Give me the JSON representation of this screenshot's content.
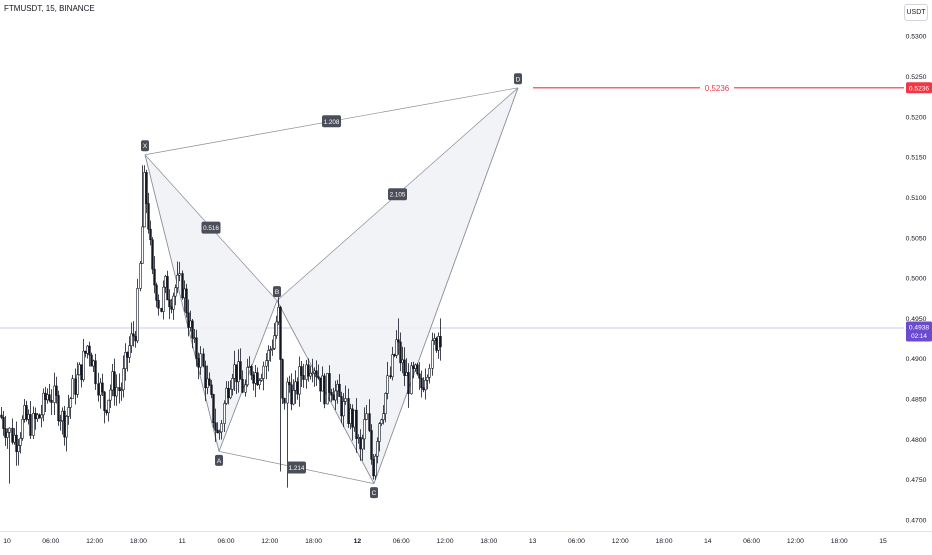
{
  "symbol_line": "FTMUSDT, 15, BINANCE",
  "currency_button": "USDT",
  "colors": {
    "up": "#ffffff",
    "down": "#131722",
    "pattern_line": "#8a8e99",
    "pattern_fill": "#f0f2f6",
    "target_line": "#f23645",
    "price_tag": "#6a4bd0",
    "current_line": "#c5cbe8"
  },
  "chart_data": {
    "type": "candlestick",
    "price_axis": {
      "ylim": [
        0.4685,
        0.5335
      ],
      "ticks": [
        "0.5300",
        "0.5250",
        "0.5200",
        "0.5150",
        "0.5100",
        "0.5050",
        "0.5000",
        "0.4950",
        "0.4900",
        "0.4850",
        "0.4800",
        "0.4750",
        "0.4700"
      ]
    },
    "time_axis": {
      "ticks": [
        {
          "label": "10",
          "bold": false
        },
        {
          "label": "06:00",
          "bold": false
        },
        {
          "label": "12:00",
          "bold": false
        },
        {
          "label": "18:00",
          "bold": false
        },
        {
          "label": "11",
          "bold": false
        },
        {
          "label": "06:00",
          "bold": false
        },
        {
          "label": "12:00",
          "bold": false
        },
        {
          "label": "18:00",
          "bold": false
        },
        {
          "label": "12",
          "bold": true
        },
        {
          "label": "06:00",
          "bold": false
        },
        {
          "label": "12:00",
          "bold": false
        },
        {
          "label": "18:00",
          "bold": false
        },
        {
          "label": "13",
          "bold": false
        },
        {
          "label": "06:00",
          "bold": false
        },
        {
          "label": "12:00",
          "bold": false
        },
        {
          "label": "18:00",
          "bold": false
        },
        {
          "label": "14",
          "bold": false
        },
        {
          "label": "06:00",
          "bold": false
        },
        {
          "label": "12:00",
          "bold": false
        },
        {
          "label": "18:00",
          "bold": false
        },
        {
          "label": "15",
          "bold": false
        }
      ]
    },
    "price_path": [
      [
        0,
        0.483
      ],
      [
        8,
        0.481
      ],
      [
        16,
        0.48
      ],
      [
        24,
        0.4825
      ],
      [
        32,
        0.4818
      ],
      [
        40,
        0.483
      ],
      [
        48,
        0.486
      ],
      [
        56,
        0.4845
      ],
      [
        64,
        0.482
      ],
      [
        72,
        0.486
      ],
      [
        80,
        0.4885
      ],
      [
        88,
        0.492
      ],
      [
        96,
        0.488
      ],
      [
        104,
        0.484
      ],
      [
        112,
        0.487
      ],
      [
        120,
        0.486
      ],
      [
        128,
        0.491
      ],
      [
        136,
        0.494
      ],
      [
        140,
        0.502
      ],
      [
        144,
        0.512
      ],
      [
        148,
        0.507
      ],
      [
        152,
        0.5
      ],
      [
        156,
        0.499
      ],
      [
        160,
        0.496
      ],
      [
        164,
        0.499
      ],
      [
        170,
        0.4975
      ],
      [
        176,
        0.499
      ],
      [
        182,
        0.499
      ],
      [
        188,
        0.495
      ],
      [
        194,
        0.491
      ],
      [
        200,
        0.49
      ],
      [
        208,
        0.486
      ],
      [
        218,
        0.48
      ],
      [
        226,
        0.486
      ],
      [
        232,
        0.489
      ],
      [
        238,
        0.488
      ],
      [
        244,
        0.486
      ],
      [
        250,
        0.489
      ],
      [
        256,
        0.488
      ],
      [
        262,
        0.489
      ],
      [
        268,
        0.4905
      ],
      [
        274,
        0.493
      ],
      [
        278,
        0.496
      ],
      [
        282,
        0.484
      ],
      [
        288,
        0.487
      ],
      [
        294,
        0.485
      ],
      [
        300,
        0.488
      ],
      [
        306,
        0.489
      ],
      [
        312,
        0.49
      ],
      [
        318,
        0.488
      ],
      [
        324,
        0.486
      ],
      [
        330,
        0.487
      ],
      [
        336,
        0.4855
      ],
      [
        342,
        0.484
      ],
      [
        348,
        0.483
      ],
      [
        354,
        0.482
      ],
      [
        360,
        0.478
      ],
      [
        366,
        0.483
      ],
      [
        372,
        0.476
      ],
      [
        378,
        0.482
      ],
      [
        384,
        0.485
      ],
      [
        390,
        0.488
      ],
      [
        396,
        0.492
      ],
      [
        402,
        0.489
      ],
      [
        408,
        0.487
      ],
      [
        414,
        0.488
      ],
      [
        420,
        0.486
      ],
      [
        426,
        0.489
      ],
      [
        432,
        0.491
      ],
      [
        438,
        0.4932
      ]
    ],
    "volatility_spikes": [
      {
        "x": 9,
        "low": 0.4745
      },
      {
        "x": 143,
        "high": 0.514
      },
      {
        "x": 280,
        "low": 0.476
      },
      {
        "x": 286,
        "low": 0.474
      },
      {
        "x": 374,
        "low": 0.475
      },
      {
        "x": 398,
        "high": 0.495
      },
      {
        "x": 440,
        "high": 0.495
      }
    ],
    "harmonic_pattern": {
      "points": [
        {
          "label": "X",
          "price": 0.5153,
          "bar_x": 145,
          "label_pos": "above"
        },
        {
          "label": "A",
          "price": 0.4785,
          "bar_x": 219,
          "label_pos": "below"
        },
        {
          "label": "B",
          "price": 0.4972,
          "bar_x": 277,
          "label_pos": "above"
        },
        {
          "label": "C",
          "price": 0.4745,
          "bar_x": 374,
          "label_pos": "below"
        },
        {
          "label": "D",
          "price": 0.5236,
          "bar_x": 518,
          "label_pos": "above"
        }
      ],
      "ratios": [
        {
          "label": "1.208",
          "between": [
            "X",
            "D"
          ]
        },
        {
          "label": "0.516",
          "between": [
            "X",
            "B"
          ]
        },
        {
          "label": "2.105",
          "between": [
            "B",
            "D"
          ]
        },
        {
          "label": "1.214",
          "between": [
            "A",
            "C"
          ]
        }
      ]
    },
    "target_line": {
      "price": 0.5236,
      "label": "0.5236"
    },
    "tags": [
      {
        "price": 0.5236,
        "text": "0.5236",
        "kind": "target"
      },
      {
        "price": 0.4938,
        "text": "0.4938",
        "kind": "current"
      }
    ],
    "current_price": {
      "price": 0.4938,
      "line_price": 0.4938,
      "countdown": "02:14"
    }
  }
}
